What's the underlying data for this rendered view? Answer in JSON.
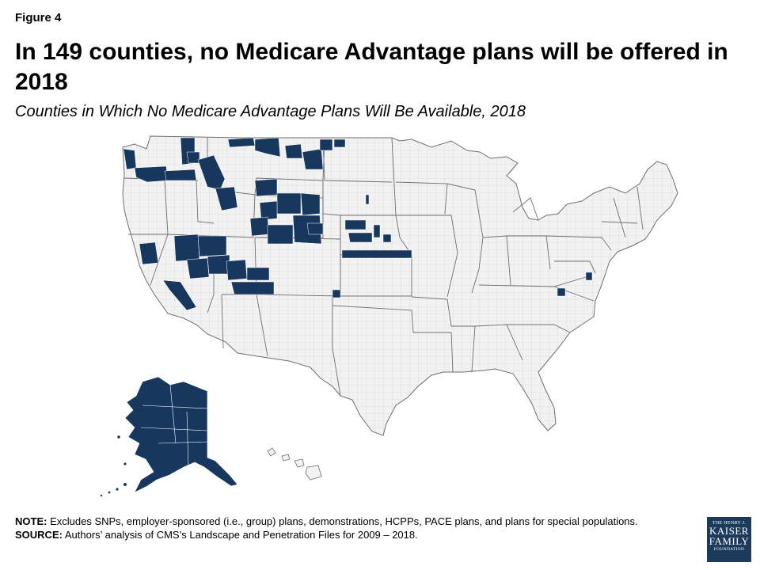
{
  "figure_label": "Figure 4",
  "title": "In 149 counties, no Medicare Advantage plans will be offered in 2018",
  "subtitle": "Counties in Which No Medicare Advantage Plans Will Be Available, 2018",
  "colors": {
    "no_plans": "#17375e",
    "available": "#f2f2f2",
    "county_border": "#d0d0d0",
    "state_border": "#6e6e6e"
  },
  "map": {
    "regions": [
      "contiguous-us",
      "alaska",
      "hawaii"
    ],
    "states_with_affected_counties": [
      "WA",
      "OR",
      "CA",
      "NV",
      "ID",
      "MT",
      "WY",
      "UT",
      "CO",
      "NE",
      "KS",
      "VA",
      "MD"
    ]
  },
  "notes": {
    "note_label": "NOTE:",
    "note_text": "Excludes SNPs, employer-sponsored (i.e., group) plans, demonstrations, HCPPs, PACE plans, and plans for special populations.",
    "source_label": "SOURCE:",
    "source_text": "Authors’ analysis of CMS’s Landscape and Penetration Files for 2009 – 2018."
  },
  "logo": {
    "line1": "THE HENRY J.",
    "line2": "KAISER",
    "line3": "FAMILY",
    "line4": "FOUNDATION"
  }
}
